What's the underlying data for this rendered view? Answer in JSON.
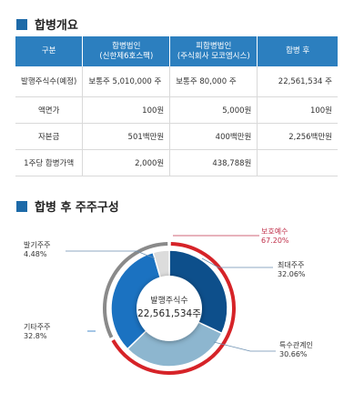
{
  "section1": {
    "title": "합병개요"
  },
  "table": {
    "headers": [
      "구분",
      "합병법인\n(신한제6호스팩)",
      "피합병법인\n(주식회사 모코엠시스)",
      "합병 후"
    ],
    "rows": [
      [
        "발행주식수(예정)",
        "보통주 5,010,000 주",
        "보통주 80,000 주",
        "22,561,534 주"
      ],
      [
        "액면가",
        "100원",
        "5,000원",
        "100원"
      ],
      [
        "자본금",
        "501백만원",
        "400백만원",
        "2,256백만원"
      ],
      [
        "1주당 합병가액",
        "2,000원",
        "438,788원",
        ""
      ]
    ]
  },
  "section2": {
    "title": "합병 후 주주구성"
  },
  "center": {
    "label": "발행주식수",
    "value": "22,561,534주"
  },
  "chart_data": {
    "type": "pie",
    "title": "합병 후 주주구성",
    "center_label": "발행주식수 22,561,534주",
    "series": [
      {
        "name": "최대주주",
        "value": 32.06,
        "label": "32.06%",
        "color": "#0d4f8b"
      },
      {
        "name": "특수관계인",
        "value": 30.66,
        "label": "30.66%",
        "color": "#8db6cf"
      },
      {
        "name": "기타주주",
        "value": 32.8,
        "label": "32.8%",
        "color": "#1b72c1"
      },
      {
        "name": "발기주주",
        "value": 4.48,
        "label": "4.48%",
        "color": "#dcdcdc"
      }
    ],
    "outer_ring": [
      {
        "name": "보호예수",
        "value": 67.2,
        "label": "67.20%",
        "color": "#d62328"
      },
      {
        "name": "",
        "value": 32.8,
        "color": "#8a8a8a"
      }
    ]
  }
}
